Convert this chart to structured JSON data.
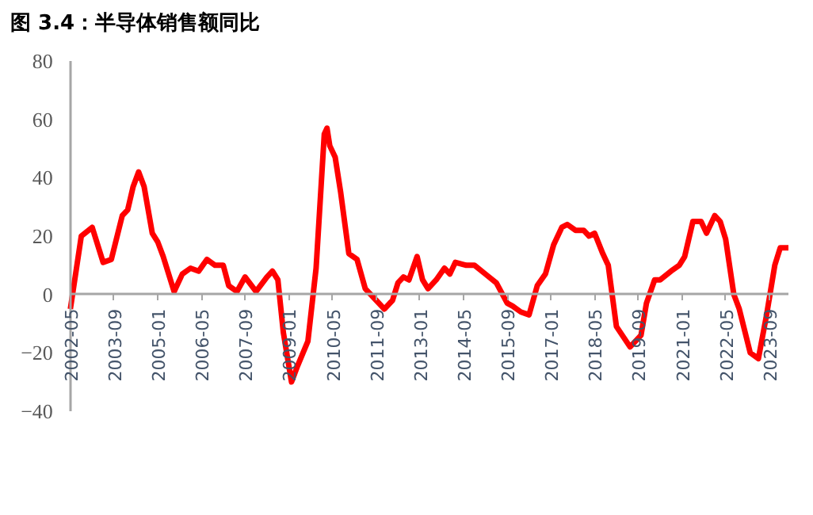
{
  "chart_data": {
    "type": "line",
    "title": "图 3.4：半导体销售额同比",
    "x": [
      "2002-05",
      "2002-09",
      "2003-01",
      "2003-05",
      "2003-08",
      "2003-12",
      "2004-02",
      "2004-04",
      "2004-06",
      "2004-08",
      "2004-11",
      "2005-01",
      "2005-03",
      "2005-07",
      "2005-10",
      "2006-01",
      "2006-04",
      "2006-07",
      "2006-10",
      "2007-01",
      "2007-03",
      "2007-06",
      "2007-09",
      "2008-01",
      "2008-05",
      "2008-07",
      "2008-09",
      "2008-11",
      "2009-02",
      "2009-04",
      "2009-08",
      "2009-11",
      "2010-02",
      "2010-03",
      "2010-04",
      "2010-06",
      "2010-08",
      "2010-11",
      "2011-02",
      "2011-05",
      "2011-09",
      "2011-12",
      "2012-03",
      "2012-05",
      "2012-07",
      "2012-09",
      "2012-12",
      "2013-02",
      "2013-04",
      "2013-07",
      "2013-10",
      "2013-12",
      "2014-02",
      "2014-06",
      "2014-09",
      "2015-01",
      "2015-05",
      "2015-09",
      "2015-11",
      "2016-02",
      "2016-05",
      "2016-08",
      "2016-11",
      "2017-02",
      "2017-05",
      "2017-07",
      "2017-10",
      "2018-01",
      "2018-03",
      "2018-05",
      "2018-08",
      "2018-10",
      "2019-01",
      "2019-06",
      "2019-10",
      "2019-12",
      "2020-03",
      "2020-05",
      "2020-09",
      "2020-12",
      "2021-02",
      "2021-05",
      "2021-08",
      "2021-10",
      "2022-01",
      "2022-03",
      "2022-05",
      "2022-08",
      "2022-10",
      "2023-02",
      "2023-05",
      "2023-08",
      "2023-11",
      "2024-01",
      "2024-04"
    ],
    "series": [
      {
        "color": "#ff0000",
        "values": [
          -5,
          20,
          23,
          11,
          12,
          27,
          29,
          37,
          42,
          37,
          21,
          18,
          13,
          1,
          7,
          9,
          8,
          12,
          10,
          10,
          3,
          1,
          6,
          1,
          6,
          8,
          5,
          -13,
          -30,
          -25,
          -16,
          9,
          55,
          57,
          51,
          47,
          35,
          14,
          12,
          2,
          -2,
          -5,
          -2,
          4,
          6,
          5,
          13,
          5,
          2,
          5,
          9,
          7,
          11,
          10,
          10,
          7,
          4,
          -3,
          -4,
          -6,
          -7,
          3,
          7,
          17,
          23,
          24,
          22,
          22,
          20,
          21,
          14,
          10,
          -11,
          -18,
          -14,
          -3,
          5,
          5,
          8,
          10,
          13,
          25,
          25,
          21,
          27,
          25,
          19,
          0,
          -5,
          -20,
          -22,
          -7,
          10,
          16,
          16
        ]
      }
    ],
    "xlim": [
      "2002-05",
      "2024-04"
    ],
    "xticks": [
      "2002-05",
      "2003-09",
      "2005-01",
      "2006-05",
      "2007-09",
      "2009-01",
      "2010-05",
      "2011-09",
      "2013-01",
      "2014-05",
      "2015-09",
      "2017-01",
      "2018-05",
      "2019-09",
      "2021-01",
      "2022-05",
      "2023-09"
    ],
    "ylim": [
      -40,
      80
    ],
    "yticks": [
      -40,
      -20,
      0,
      20,
      40,
      60,
      80
    ],
    "grid": false,
    "line_style": "solid",
    "marker": "none"
  }
}
